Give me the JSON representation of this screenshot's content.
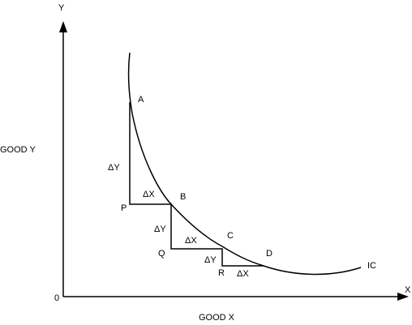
{
  "axes": {
    "y": "Y",
    "x": "X",
    "origin": "0",
    "y_label": "GOOD Y",
    "x_label": "GOOD X"
  },
  "curve_label": "IC",
  "points": [
    "A",
    "B",
    "C",
    "D",
    "P",
    "Q",
    "R"
  ],
  "changes": [
    "ΔY",
    "ΔX",
    "ΔY",
    "ΔX",
    "ΔY",
    "ΔX"
  ]
}
